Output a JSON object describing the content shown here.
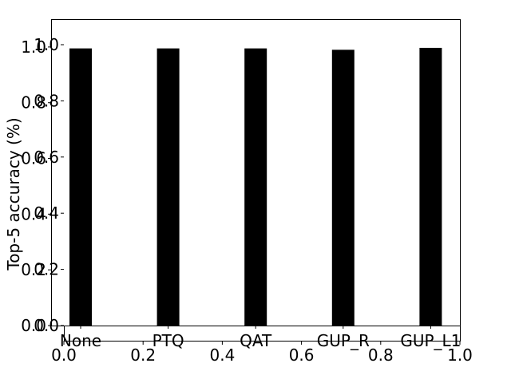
{
  "chart_data": [
    {
      "type": "bar",
      "categories": [
        "None",
        "PTQ",
        "QAT",
        "GUP_R",
        "GUP_L1"
      ],
      "values": [
        0.995,
        0.995,
        0.995,
        0.99,
        0.997
      ],
      "xlabel": "",
      "ylabel": "Top-5 accuracy (%)",
      "ylim": [
        0,
        1.1
      ],
      "bar_color": "#000000",
      "y_ticks": [
        "0.0",
        "0.2",
        "0.4",
        "0.6",
        "0.8",
        "1.0"
      ],
      "grid": false,
      "legend": "none"
    },
    {
      "type": "axes",
      "x_ticks": [
        "0.0",
        "0.2",
        "0.4",
        "0.6",
        "0.8",
        "1.0"
      ],
      "y_ticks": [
        "0.0",
        "0.2",
        "0.4",
        "0.6",
        "0.8",
        "1.0"
      ],
      "xlim": [
        0,
        1
      ],
      "ylim": [
        0,
        1
      ]
    }
  ]
}
